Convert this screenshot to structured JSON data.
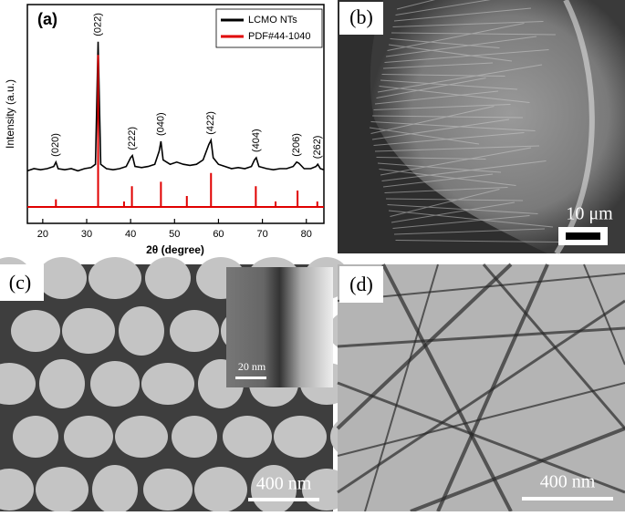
{
  "chart_data": {
    "type": "line",
    "panel_label": "(a)",
    "xlabel": "2θ (degree)",
    "ylabel": "Intensity (a.u.)",
    "xlim": [
      16.5,
      84
    ],
    "ylim": [
      0,
      100
    ],
    "xticks": [
      20,
      30,
      40,
      50,
      60,
      70,
      80
    ],
    "legend": "upper right",
    "series": [
      {
        "name": "LCMO NTs",
        "color": "#000000",
        "x": [
          16.5,
          18,
          19.5,
          21,
          22.5,
          23,
          23.5,
          25,
          26.5,
          28,
          29.5,
          31,
          32,
          32.6,
          33.2,
          34.5,
          36,
          37.5,
          39,
          40,
          40.4,
          41,
          42.5,
          44,
          45.5,
          46.5,
          46.9,
          47.4,
          49,
          50.5,
          52,
          53.5,
          55,
          56.5,
          57.8,
          58.3,
          58.8,
          60,
          61.5,
          63,
          64.5,
          66,
          67.5,
          68.2,
          68.6,
          69.2,
          71,
          72.5,
          74,
          75.5,
          77,
          77.8,
          78.3,
          79.5,
          81,
          82.2,
          82.6,
          83.2,
          84
        ],
        "values": [
          24,
          25,
          24.5,
          25,
          26,
          28,
          25,
          24.5,
          25,
          24,
          25,
          25.5,
          27,
          83,
          27,
          25,
          24.5,
          25,
          26,
          30,
          31,
          26,
          25.5,
          26,
          27,
          33,
          37.5,
          29,
          27,
          28,
          27,
          26.5,
          27,
          29,
          36,
          38,
          30,
          27,
          26,
          25,
          25.5,
          25,
          26,
          29,
          30,
          26,
          25,
          24.5,
          25,
          25,
          26,
          28,
          27.5,
          25,
          25,
          26,
          27,
          25,
          24.5
        ]
      },
      {
        "name": "PDF#44-1040",
        "color": "#e00000",
        "x": [
          16.5,
          23,
          23,
          23,
          32.6,
          32.6,
          32.6,
          38.5,
          38.5,
          38.5,
          40.3,
          40.3,
          40.3,
          46.9,
          46.9,
          46.9,
          52.8,
          52.8,
          52.8,
          58.3,
          58.3,
          58.3,
          68.5,
          68.5,
          68.5,
          73,
          73,
          73,
          78,
          78,
          78,
          82.5,
          82.5,
          82.5,
          84
        ],
        "values": [
          7.5,
          7.5,
          11,
          7.5,
          7.5,
          77,
          7.5,
          7.5,
          10,
          7.5,
          7.5,
          17,
          7.5,
          7.5,
          19,
          7.5,
          7.5,
          12.5,
          7.5,
          7.5,
          23,
          7.5,
          7.5,
          17,
          7.5,
          7.5,
          10,
          7.5,
          7.5,
          15,
          7.5,
          7.5,
          10,
          7.5,
          7.5
        ]
      }
    ],
    "annotations": [
      {
        "text": "(020)",
        "x": 23
      },
      {
        "text": "(022)",
        "x": 32.6
      },
      {
        "text": "(222)",
        "x": 40.4
      },
      {
        "text": "(040)",
        "x": 46.9
      },
      {
        "text": "(422)",
        "x": 58.3
      },
      {
        "text": "(404)",
        "x": 68.6
      },
      {
        "text": "(206)",
        "x": 77.8
      },
      {
        "text": "(262)",
        "x": 82.6
      }
    ]
  },
  "panels": {
    "b": {
      "label": "(b)",
      "scale_bar": "10 μm"
    },
    "c": {
      "label": "(c)",
      "scale_bar": "400 nm",
      "inset_scale_bar": "20 nm"
    },
    "d": {
      "label": "(d)",
      "scale_bar": "400 nm"
    }
  }
}
